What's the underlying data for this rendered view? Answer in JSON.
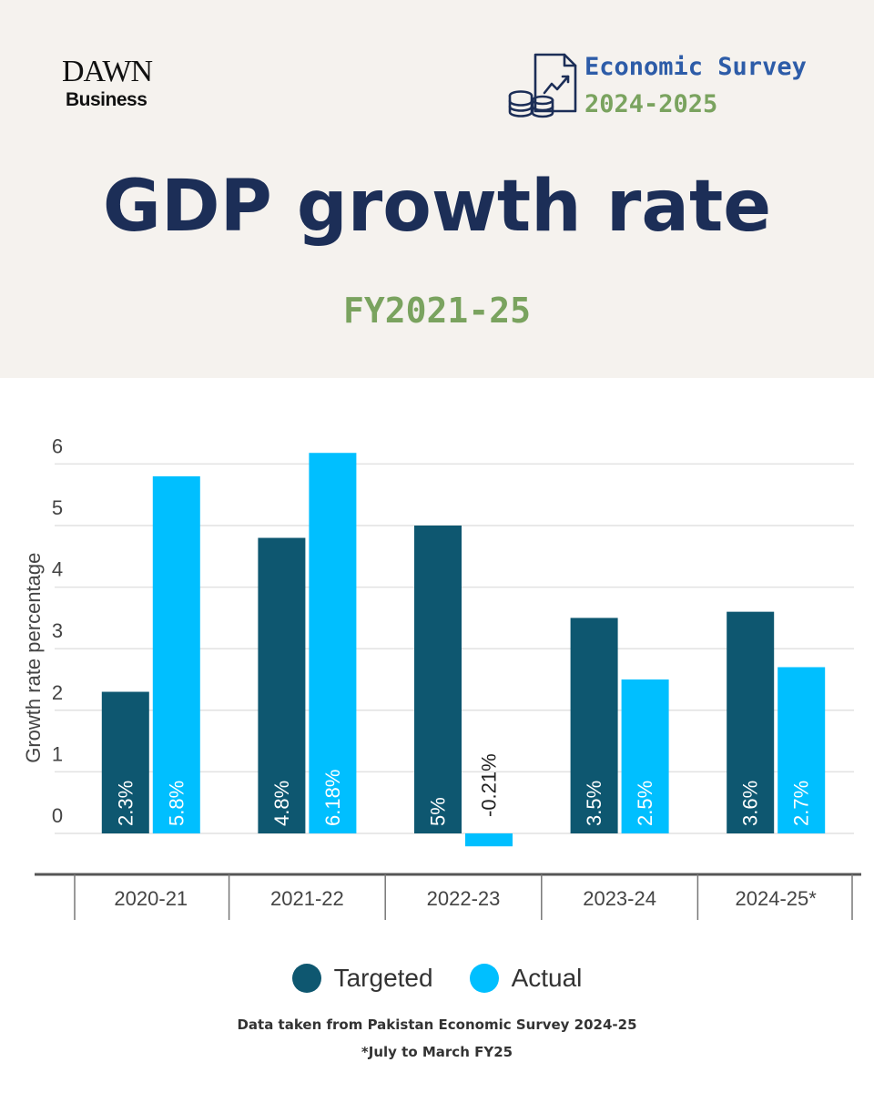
{
  "header": {
    "brand_name": "DAWN",
    "brand_section": "Business",
    "survey_title": "Economic Survey",
    "survey_years": "2024-2025",
    "title": "GDP growth rate",
    "subtitle": "FY2021-25"
  },
  "colors": {
    "background_header": "#f5f2ee",
    "title": "#1c2e57",
    "accent_green": "#7aa35f",
    "accent_blue": "#2d5ca8",
    "targeted": "#0e5770",
    "actual": "#00bfff"
  },
  "chart_data": {
    "type": "bar",
    "categories": [
      "2020-21",
      "2021-22",
      "2022-23",
      "2023-24",
      "2024-25*"
    ],
    "series": [
      {
        "name": "Targeted",
        "values": [
          2.3,
          4.8,
          5,
          3.5,
          3.6
        ],
        "labels": [
          "2.3%",
          "4.8%",
          "5%",
          "3.5%",
          "3.6%"
        ],
        "color": "#0e5770"
      },
      {
        "name": "Actual",
        "values": [
          5.8,
          6.18,
          -0.21,
          2.5,
          2.7
        ],
        "labels": [
          "5.8%",
          "6.18%",
          "-0.21%",
          "2.5%",
          "2.7%"
        ],
        "color": "#00bfff"
      }
    ],
    "ylabel": "Growth rate percentage",
    "yticks": [
      "0",
      "1",
      "2",
      "3",
      "4",
      "5",
      "6"
    ],
    "ylim": [
      -0.5,
      6.5
    ],
    "grid": true,
    "legend_position": "bottom"
  },
  "footer": {
    "source": "Data taken from Pakistan Economic Survey 2024-25",
    "footnote": "*July to March FY25"
  }
}
